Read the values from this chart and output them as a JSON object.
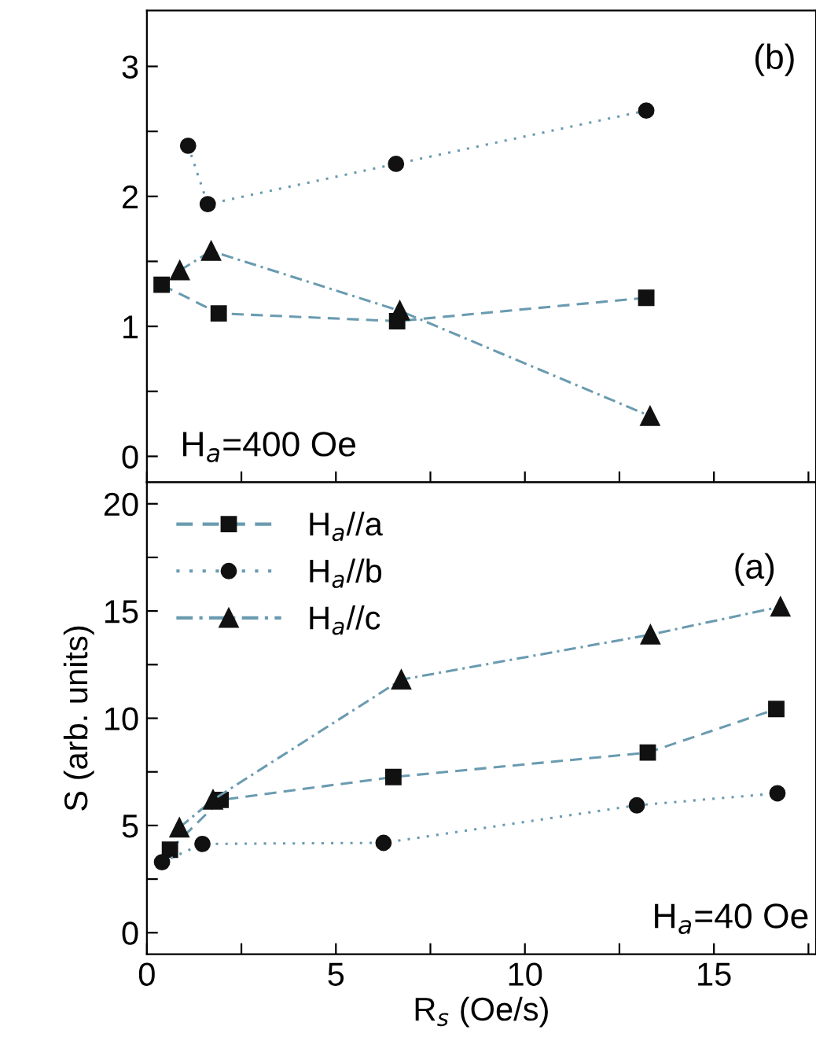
{
  "chart_data": [
    {
      "type": "line",
      "xlim": [
        0,
        17.7
      ],
      "ylim": [
        -0.2,
        3.43
      ],
      "xticks": [
        {
          "value": 0,
          "label": null
        },
        {
          "value": 2.5,
          "label": null
        },
        {
          "value": 5,
          "label": null
        },
        {
          "value": 7.5,
          "label": null
        },
        {
          "value": 10,
          "label": null
        },
        {
          "value": 12.5,
          "label": null
        },
        {
          "value": 15,
          "label": null
        },
        {
          "value": 17.5,
          "label": null
        }
      ],
      "yticks": [
        0,
        {
          "value": 0.5,
          "label": null
        },
        1,
        {
          "value": 1.5,
          "label": null
        },
        2,
        {
          "value": 2.5,
          "label": null
        },
        3
      ],
      "tick_labels": "y",
      "grid": false,
      "legend": false,
      "annotations": [
        {
          "text": "(b)"
        },
        {
          "text": "H$_{a}$=400 Oe"
        }
      ],
      "series": [
        {
          "color": "#111111",
          "marker": "square",
          "line_style": "dashed",
          "x": [
            0.39,
            1.9,
            6.62,
            13.21
          ],
          "values": [
            1.32,
            1.1,
            1.04,
            1.22
          ]
        },
        {
          "color": "#111111",
          "marker": "circle",
          "line_style": "dotted",
          "x": [
            1.09,
            1.61,
            6.59,
            13.21
          ],
          "values": [
            2.39,
            1.94,
            2.25,
            2.66
          ]
        },
        {
          "color": "#111111",
          "marker": "triangle",
          "line_style": "dashdot",
          "x": [
            0.87,
            1.7,
            6.69,
            13.31
          ],
          "values": [
            1.43,
            1.58,
            1.12,
            0.31
          ]
        }
      ]
    },
    {
      "type": "line",
      "xlim": [
        0,
        17.7
      ],
      "ylim": [
        -1,
        21
      ],
      "xlabel": "R$_{s}$ (Oe/s)",
      "ylabel": "S (arb. units)",
      "xticks": [
        0,
        {
          "value": 2.5,
          "label": null
        },
        5,
        {
          "value": 7.5,
          "label": null
        },
        10,
        {
          "value": 12.5,
          "label": null
        },
        15,
        {
          "value": 17.5,
          "label": null
        }
      ],
      "yticks": [
        0,
        {
          "value": 2.5,
          "label": null
        },
        5,
        {
          "value": 7.5,
          "label": null
        },
        10,
        {
          "value": 12.5,
          "label": null
        },
        15,
        {
          "value": 17.5,
          "label": null
        },
        20
      ],
      "grid": false,
      "legend": "top left",
      "annotations": [
        {
          "text": "(a)"
        },
        {
          "text": "H$_{a}$=40 Oe"
        }
      ],
      "series": [
        {
          "name": "H$_{a}$//a",
          "color": "#111111",
          "marker": "square",
          "line_style": "dashed",
          "x": [
            0.61,
            1.95,
            6.52,
            13.25,
            16.65
          ],
          "values": [
            3.87,
            6.19,
            7.26,
            8.4,
            10.43
          ]
        },
        {
          "name": "H$_{a}$//b",
          "color": "#111111",
          "marker": "circle",
          "line_style": "dotted",
          "x": [
            0.4,
            1.47,
            6.26,
            12.96,
            16.68
          ],
          "values": [
            3.29,
            4.14,
            4.19,
            5.94,
            6.5
          ]
        },
        {
          "name": "H$_{a}$//c",
          "color": "#111111",
          "marker": "triangle",
          "line_style": "dashdot",
          "x": [
            0.86,
            1.75,
            6.73,
            13.32,
            16.76
          ],
          "values": [
            4.9,
            6.2,
            11.8,
            13.9,
            15.2
          ]
        }
      ]
    }
  ]
}
